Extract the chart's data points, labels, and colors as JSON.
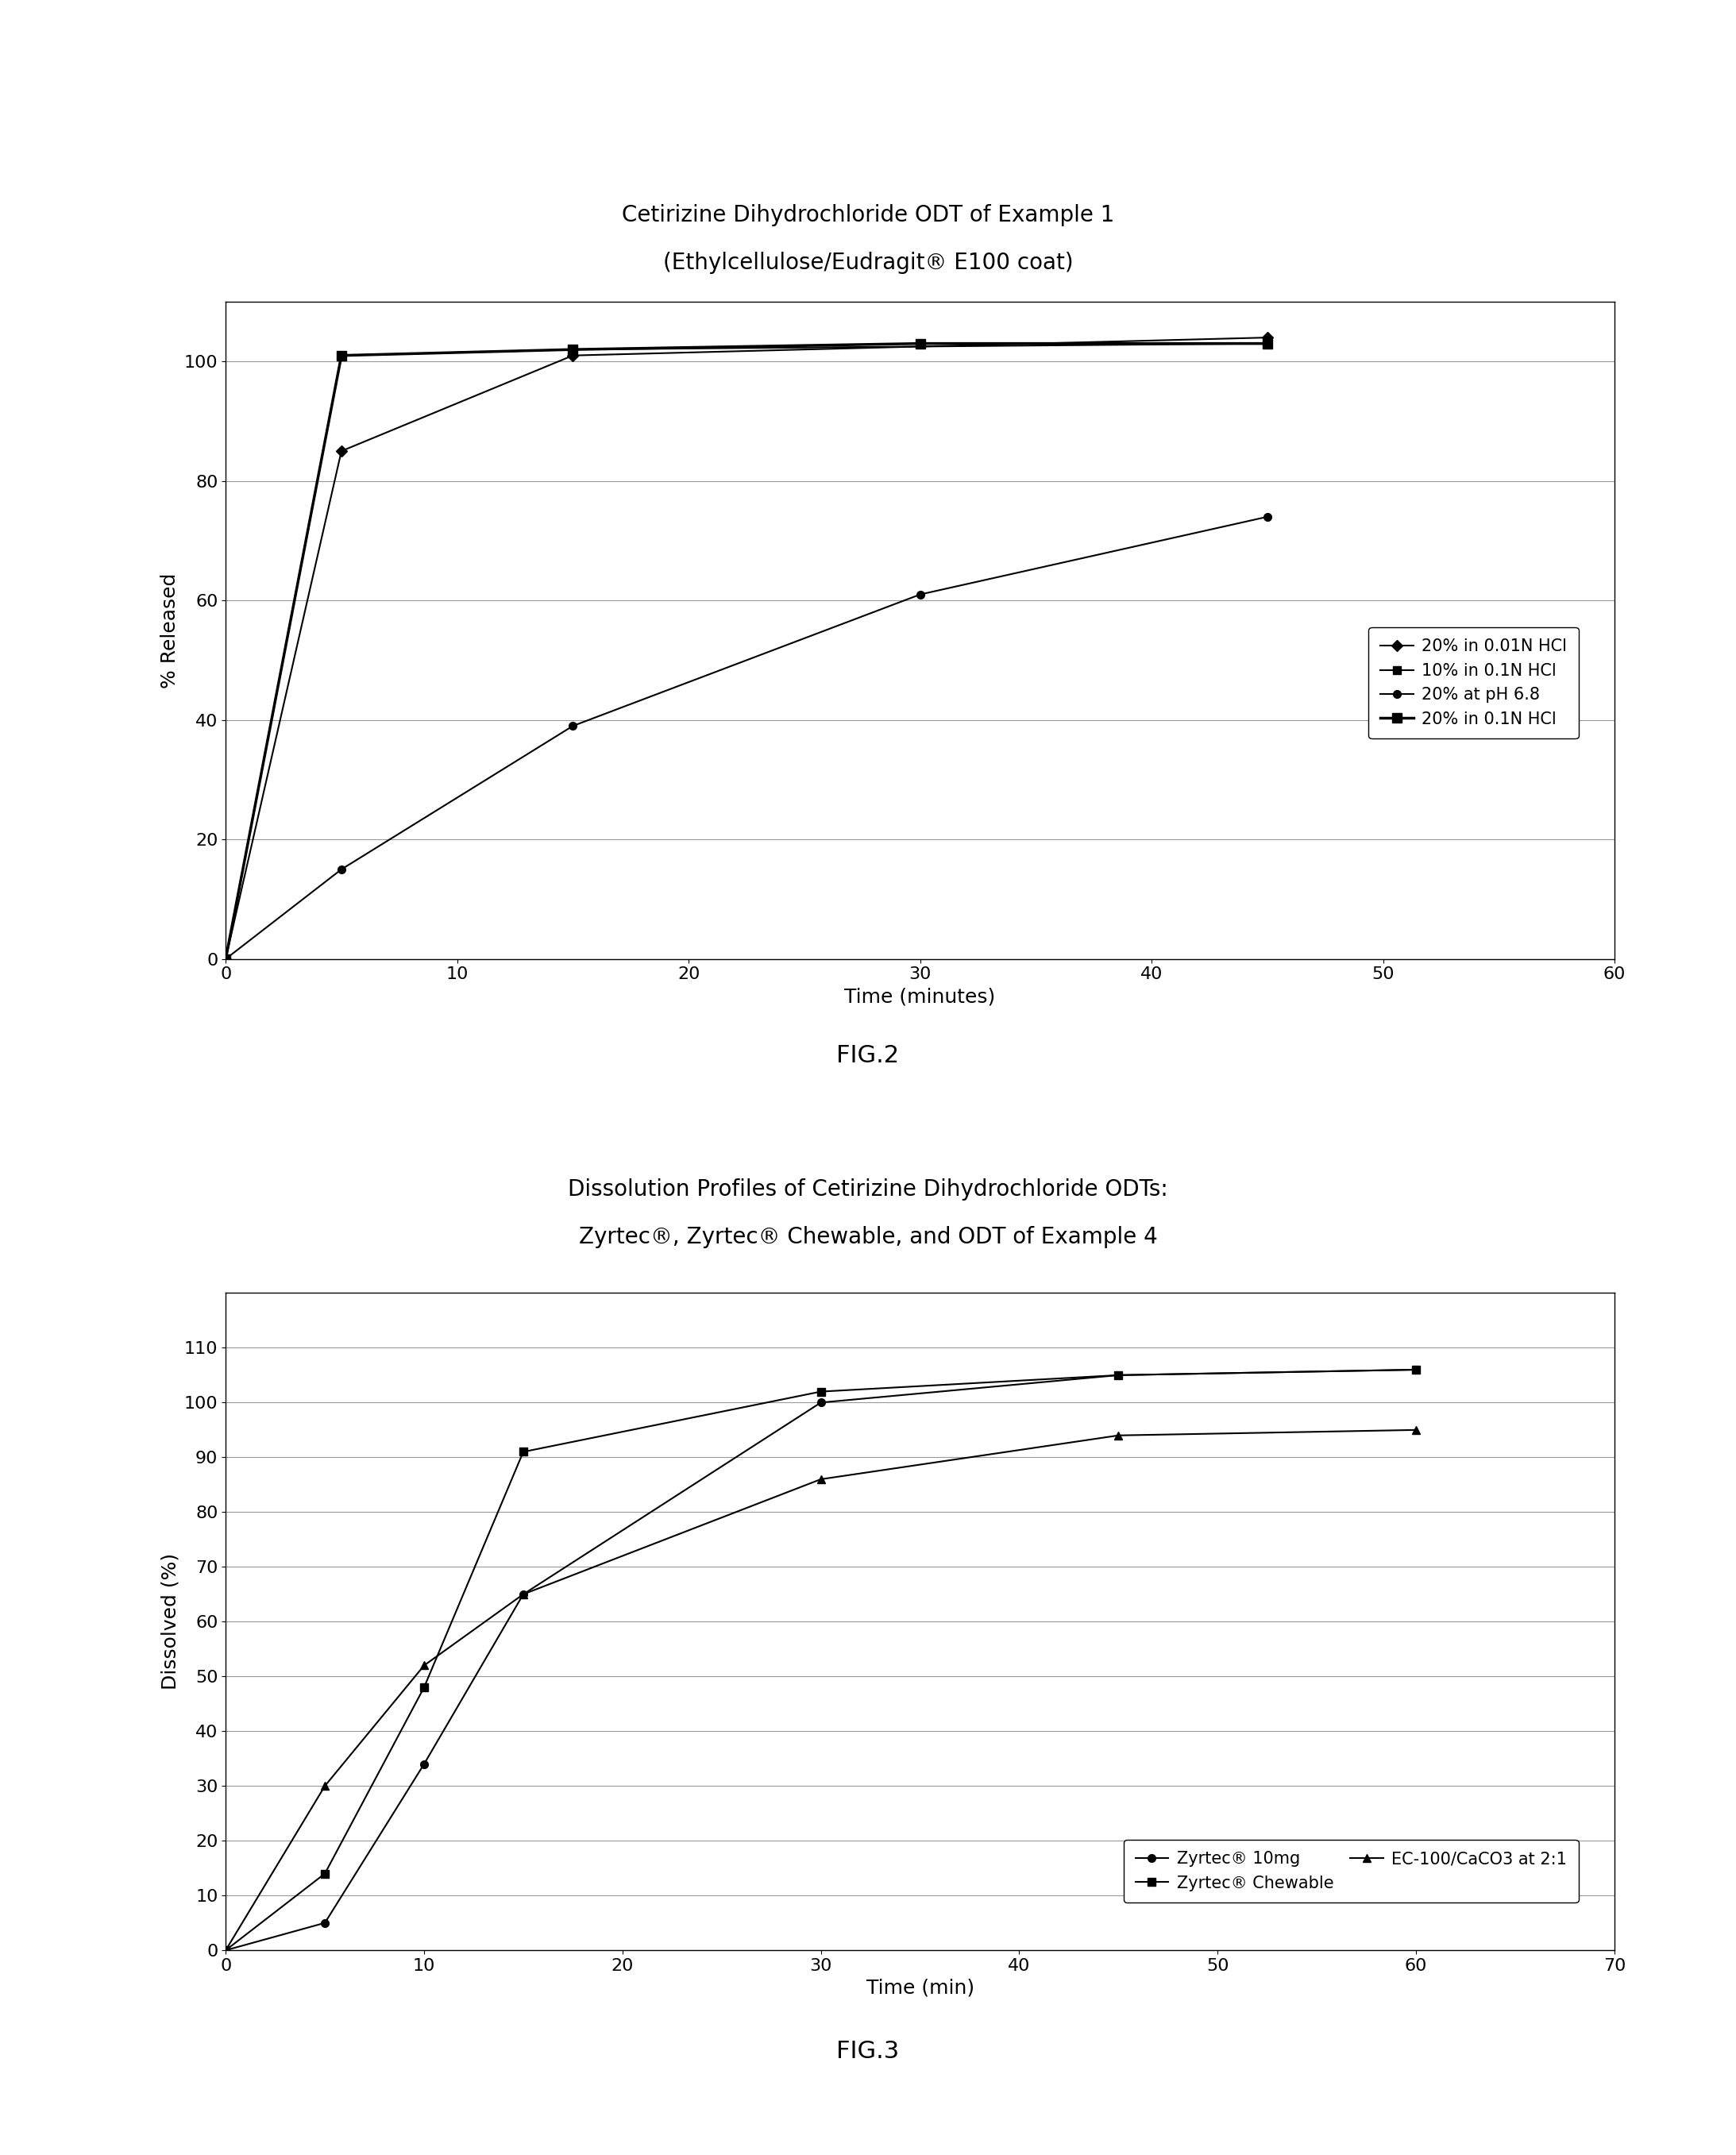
{
  "fig2": {
    "title_line1": "Cetirizine Dihydrochloride ODT of Example 1",
    "title_line2": "(Ethylcellulose/Eudragit® E100 coat)",
    "xlabel": "Time (minutes)",
    "ylabel": "% Released",
    "xlim": [
      0,
      60
    ],
    "ylim": [
      0,
      110
    ],
    "xticks": [
      0,
      10,
      20,
      30,
      40,
      50,
      60
    ],
    "yticks": [
      0,
      20,
      40,
      60,
      80,
      100
    ],
    "figname": "FIG.2",
    "series": [
      {
        "label": "20% in 0.01N HCl",
        "x": [
          0,
          5,
          15,
          45
        ],
        "y": [
          0,
          85,
          101,
          104
        ],
        "marker": "D",
        "markersize": 7,
        "color": "#000000",
        "linestyle": "-",
        "linewidth": 1.5
      },
      {
        "label": "10% in 0.1N HCl",
        "x": [
          0,
          5,
          15,
          45
        ],
        "y": [
          0,
          101,
          102,
          103
        ],
        "marker": "s",
        "markersize": 7,
        "color": "#000000",
        "linestyle": "-",
        "linewidth": 1.5
      },
      {
        "label": "20% at pH 6.8",
        "x": [
          0,
          5,
          15,
          30,
          45
        ],
        "y": [
          0,
          15,
          39,
          61,
          74
        ],
        "marker": "o",
        "markersize": 7,
        "color": "#000000",
        "linestyle": "-",
        "linewidth": 1.5
      },
      {
        "label": "20% in 0.1N HCl",
        "x": [
          0,
          5,
          15,
          30,
          45
        ],
        "y": [
          0,
          101,
          102,
          103,
          103
        ],
        "marker": "s",
        "markersize": 9,
        "color": "#000000",
        "linestyle": "-",
        "linewidth": 2.5
      }
    ]
  },
  "fig3": {
    "title_line1": "Dissolution Profiles of Cetirizine Dihydrochloride ODTs:",
    "title_line2": "Zyrtec®, Zyrtec® Chewable, and ODT of Example 4",
    "xlabel": "Time (min)",
    "ylabel": "Dissolved (%)",
    "xlim": [
      0,
      70
    ],
    "ylim": [
      0,
      120
    ],
    "xticks": [
      0,
      10,
      20,
      30,
      40,
      50,
      60,
      70
    ],
    "yticks": [
      0,
      10,
      20,
      30,
      40,
      50,
      60,
      70,
      80,
      90,
      100,
      110
    ],
    "figname": "FIG.3",
    "series": [
      {
        "label": "Zyrtec® 10mg",
        "x": [
          0,
          5,
          10,
          15,
          30,
          45,
          60
        ],
        "y": [
          0,
          5,
          34,
          65,
          100,
          105,
          106
        ],
        "marker": "o",
        "markersize": 7,
        "color": "#000000",
        "linestyle": "-",
        "linewidth": 1.5
      },
      {
        "label": "Zyrtec® Chewable",
        "x": [
          0,
          5,
          10,
          15,
          30,
          45,
          60
        ],
        "y": [
          0,
          14,
          48,
          91,
          102,
          105,
          106
        ],
        "marker": "s",
        "markersize": 7,
        "color": "#000000",
        "linestyle": "-",
        "linewidth": 1.5
      },
      {
        "label": "EC-100/CaCO3 at 2:1",
        "x": [
          0,
          5,
          10,
          15,
          30,
          45,
          60
        ],
        "y": [
          0,
          30,
          52,
          65,
          86,
          94,
          95
        ],
        "marker": "^",
        "markersize": 7,
        "color": "#000000",
        "linestyle": "-",
        "linewidth": 1.5
      }
    ]
  },
  "title_fontsize": 20,
  "label_fontsize": 18,
  "tick_fontsize": 16,
  "legend_fontsize": 15,
  "figname_fontsize": 22
}
